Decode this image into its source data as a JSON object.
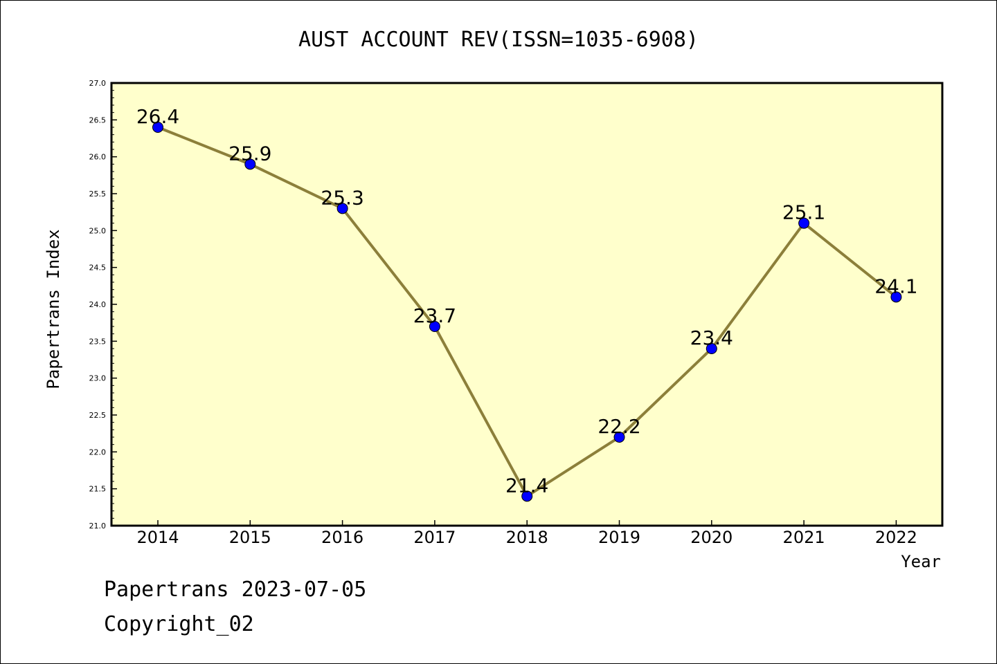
{
  "footer": {
    "line1": "Papertrans 2023-07-05",
    "line2": "Copyright_02"
  },
  "colors": {
    "plot_background": "#ffffcc",
    "line": "#8c7f3a",
    "marker": "#0000ff",
    "axis": "#000000"
  },
  "chart_data": {
    "type": "line",
    "title": "AUST ACCOUNT REV(ISSN=1035-6908)",
    "xlabel": "Year",
    "ylabel": "Papertrans Index",
    "categories": [
      "2014",
      "2015",
      "2016",
      "2017",
      "2018",
      "2019",
      "2020",
      "2021",
      "2022"
    ],
    "values": [
      26.4,
      25.9,
      25.3,
      23.7,
      21.4,
      22.2,
      23.4,
      25.1,
      24.1
    ],
    "data_labels": [
      "26.4",
      "25.9",
      "25.3",
      "23.7",
      "21.4",
      "22.2",
      "23.4",
      "25.1",
      "24.1"
    ],
    "ylim": [
      21.0,
      27.0
    ],
    "yticks": [
      "21.0",
      "21.5",
      "22.0",
      "22.5",
      "23.0",
      "23.5",
      "24.0",
      "24.5",
      "25.0",
      "25.5",
      "26.0",
      "26.5",
      "27.0"
    ],
    "grid": false,
    "legend": false
  }
}
